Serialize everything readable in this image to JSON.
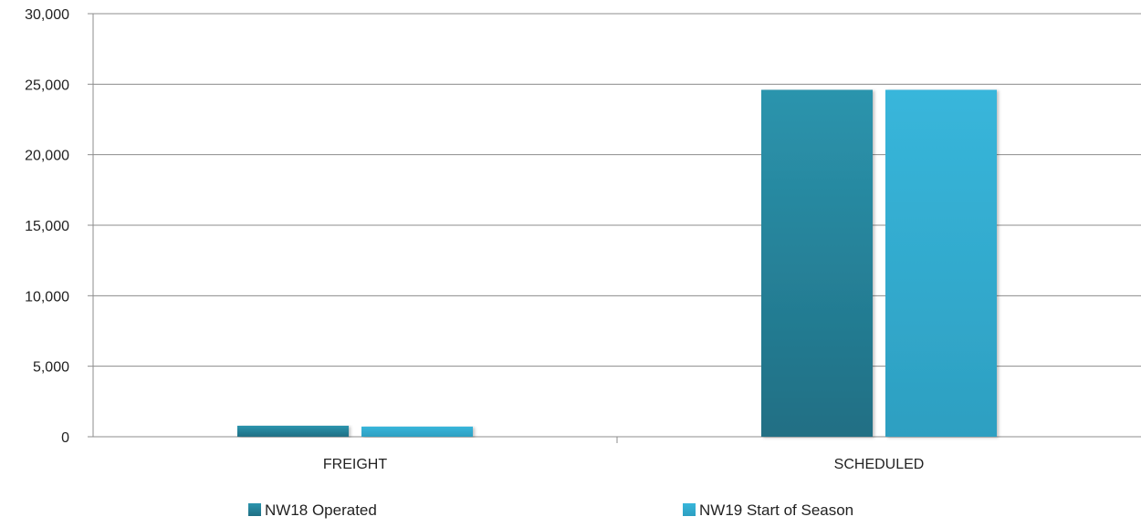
{
  "chart_data": {
    "type": "bar",
    "categories": [
      "FREIGHT",
      "SCHEDULED"
    ],
    "series": [
      {
        "name": "NW18 Operated",
        "values": [
          780,
          24600
        ],
        "color": "#2a8aa2"
      },
      {
        "name": "NW19 Start of Season",
        "values": [
          720,
          24600
        ],
        "color": "#37b1d6"
      }
    ],
    "yticks": [
      "0",
      "5,000",
      "10,000",
      "15,000",
      "20,000",
      "25,000",
      "30,000"
    ],
    "ylim": [
      0,
      30000
    ],
    "legend_position": "bottom",
    "grid": true
  }
}
